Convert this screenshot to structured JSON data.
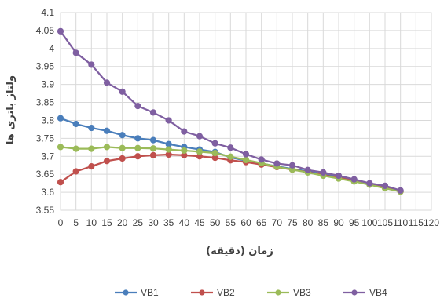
{
  "chart_data": {
    "type": "line",
    "xlabel": "زمان (دقیقه)",
    "ylabel": "ولتاژ باتری ها",
    "xlim": [
      0,
      120
    ],
    "ylim": [
      3.55,
      4.1
    ],
    "x_ticks": [
      "0",
      "5",
      "10",
      "15",
      "20",
      "25",
      "30",
      "35",
      "40",
      "45",
      "50",
      "55",
      "60",
      "65",
      "70",
      "75",
      "80",
      "85",
      "90",
      "95",
      "100",
      "105",
      "110",
      "115",
      "120"
    ],
    "y_ticks": [
      "3.55",
      "3.6",
      "3.65",
      "3.7",
      "3.75",
      "3.8",
      "3.85",
      "3.9",
      "3.95",
      "4",
      "4.05",
      "4.1"
    ],
    "grid": "both",
    "legend_position": "bottom",
    "x": [
      0,
      5,
      10,
      15,
      20,
      25,
      30,
      35,
      40,
      45,
      50,
      55,
      60,
      65,
      70,
      75,
      80,
      85,
      90,
      95,
      100,
      105,
      110
    ],
    "series": [
      {
        "name": "VB1",
        "color": "#4a7ebb",
        "values": [
          3.806,
          3.79,
          3.779,
          3.771,
          3.759,
          3.75,
          3.745,
          3.734,
          3.726,
          3.719,
          3.712,
          3.697,
          3.688,
          3.68,
          3.672,
          3.665,
          3.658,
          3.65,
          3.642,
          3.633,
          3.623,
          3.614,
          3.604
        ]
      },
      {
        "name": "VB2",
        "color": "#c0504d",
        "values": [
          3.628,
          3.658,
          3.672,
          3.687,
          3.694,
          3.7,
          3.703,
          3.705,
          3.703,
          3.7,
          3.696,
          3.689,
          3.684,
          3.677,
          3.67,
          3.663,
          3.656,
          3.648,
          3.64,
          3.632,
          3.622,
          3.612,
          3.602
        ]
      },
      {
        "name": "VB3",
        "color": "#9bbb59",
        "values": [
          3.726,
          3.721,
          3.721,
          3.726,
          3.723,
          3.723,
          3.722,
          3.719,
          3.716,
          3.713,
          3.709,
          3.699,
          3.69,
          3.681,
          3.671,
          3.663,
          3.655,
          3.646,
          3.638,
          3.63,
          3.621,
          3.611,
          3.602
        ]
      },
      {
        "name": "VB4",
        "color": "#7f5fa1",
        "values": [
          4.048,
          3.988,
          3.955,
          3.905,
          3.88,
          3.84,
          3.822,
          3.8,
          3.769,
          3.756,
          3.736,
          3.724,
          3.706,
          3.691,
          3.68,
          3.675,
          3.662,
          3.655,
          3.646,
          3.636,
          3.625,
          3.618,
          3.605
        ]
      }
    ]
  }
}
